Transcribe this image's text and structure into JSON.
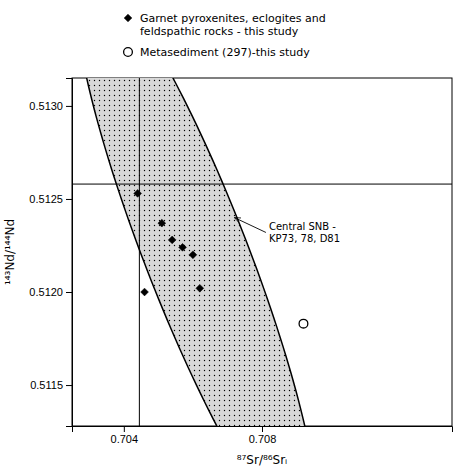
{
  "chart_data": {
    "type": "scatter",
    "title": "",
    "xlabel": "⁸⁷Sr/⁸⁶Srᵢ",
    "ylabel": "¹⁴³Nd/¹⁴⁴Nd",
    "xlim": [
      0.7025,
      0.7135
    ],
    "ylim": [
      0.51128,
      0.51315
    ],
    "xticks": [
      0.704,
      0.708
    ],
    "yticks": [
      0.5115,
      {
        "value": 0.512,
        "label": "0.5120"
      },
      0.5125,
      {
        "value": 0.513,
        "label": "0.5130"
      }
    ],
    "series": [
      {
        "name": "Garnet pyroxenites, eclogites and\nfeldspathic rocks - this study",
        "marker": "diamond",
        "color": "#000000",
        "x": [
          0.7044,
          0.7051,
          0.7054,
          0.7057,
          0.706,
          0.7046,
          0.7062
        ],
        "values": [
          0.51253,
          0.51237,
          0.51228,
          0.51224,
          0.5122,
          0.512,
          0.51202
        ]
      },
      {
        "name": "Metasediment (297)-this study",
        "marker": "open-circle",
        "color": "#000000",
        "x": [
          0.7092
        ],
        "values": [
          0.51183
        ]
      }
    ],
    "ellipse": {
      "center_x": 0.7061,
      "center_y": 0.5122,
      "width": 0.0075,
      "height": 0.0013,
      "angle": -22,
      "color": "#d8d8d8"
    },
    "vline": 0.70445,
    "hline": 0.51258,
    "annotations": [
      {
        "text": "Central SNB -\nKP73, 78, D81",
        "x": 0.7072,
        "y": 0.5124,
        "text_x": 0.7082,
        "text_y": 0.51232
      }
    ],
    "legend": "top"
  }
}
